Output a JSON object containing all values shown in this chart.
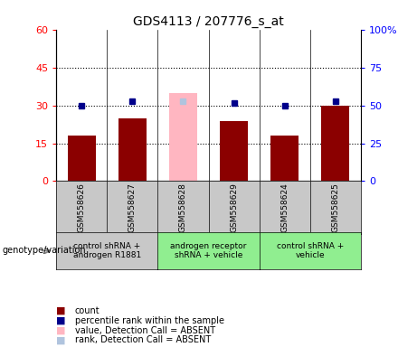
{
  "title": "GDS4113 / 207776_s_at",
  "samples": [
    "GSM558626",
    "GSM558627",
    "GSM558628",
    "GSM558629",
    "GSM558624",
    "GSM558625"
  ],
  "counts": [
    18,
    25,
    35,
    24,
    18,
    30
  ],
  "percentile_ranks": [
    50,
    53,
    53,
    52,
    50,
    53
  ],
  "absent_mask": [
    false,
    false,
    true,
    false,
    false,
    false
  ],
  "ylim_left": [
    0,
    60
  ],
  "ylim_right": [
    0,
    100
  ],
  "yticks_left": [
    0,
    15,
    30,
    45,
    60
  ],
  "ytick_labels_left": [
    "0",
    "15",
    "30",
    "45",
    "60"
  ],
  "yticks_right": [
    0,
    25,
    50,
    75,
    100
  ],
  "ytick_labels_right": [
    "0",
    "25",
    "50",
    "75",
    "100%"
  ],
  "bar_color_present": "#8B0000",
  "bar_color_absent": "#FFB6C1",
  "dot_color_present": "#00008B",
  "dot_color_absent": "#B0C4DE",
  "group_configs": [
    {
      "indices": [
        0,
        1
      ],
      "label": "control shRNA +\nandrogen R1881",
      "color": "#C8C8C8"
    },
    {
      "indices": [
        2,
        3
      ],
      "label": "androgen receptor\nshRNA + vehicle",
      "color": "#90EE90"
    },
    {
      "indices": [
        4,
        5
      ],
      "label": "control shRNA +\nvehicle",
      "color": "#90EE90"
    }
  ],
  "sample_box_color": "#C8C8C8",
  "legend_items": [
    {
      "label": "count",
      "color": "#8B0000"
    },
    {
      "label": "percentile rank within the sample",
      "color": "#00008B"
    },
    {
      "label": "value, Detection Call = ABSENT",
      "color": "#FFB6C1"
    },
    {
      "label": "rank, Detection Call = ABSENT",
      "color": "#B0C4DE"
    }
  ],
  "genotype_label": "genotype/variation",
  "bar_width": 0.55
}
